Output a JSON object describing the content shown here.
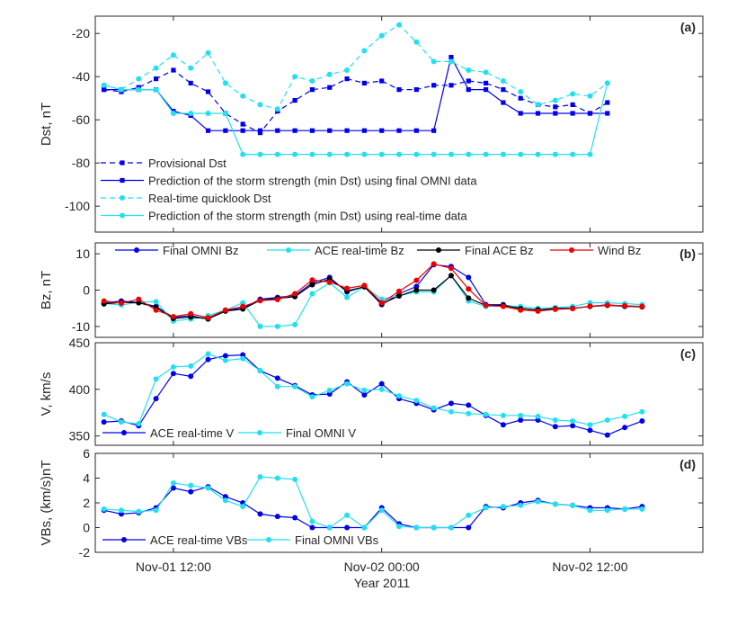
{
  "xaxis": {
    "label": "Year 2011",
    "range": [
      -0.5,
      34.5
    ],
    "ticks": [
      {
        "x": 4,
        "label": "Nov-01 12:00"
      },
      {
        "x": 16,
        "label": "Nov-02 00:00"
      },
      {
        "x": 28,
        "label": "Nov-02 12:00"
      }
    ]
  },
  "colors": {
    "blue": "#0000ee",
    "cyan": "#22e0f0",
    "black": "#000000",
    "red": "#ee0000"
  },
  "chart_data": [
    {
      "type": "line",
      "panel": "a",
      "tag": "(a)",
      "ylabel": "Dst, nT",
      "ylim": [
        -112,
        -12
      ],
      "yticks": [
        -20,
        -40,
        -60,
        -80,
        -100
      ],
      "legend_position": "bottom-left",
      "series": [
        {
          "name": "Provisional Dst",
          "color": "blue",
          "dash": true,
          "marker": "square",
          "values": [
            -46,
            -47,
            -45,
            -41,
            -37,
            -43,
            -47,
            -57,
            -62,
            -66,
            -56,
            -51,
            -46,
            -45,
            -41,
            -43,
            -42,
            -46,
            -46,
            -44,
            -44,
            -42,
            -43,
            -46,
            -50,
            -53,
            -54,
            -53,
            -57,
            -52
          ]
        },
        {
          "name": "Prediction of the storm strength (min Dst) using final OMNI data",
          "color": "blue",
          "dash": false,
          "marker": "square",
          "values": [
            -46,
            -46,
            -46,
            -46,
            -56,
            -58,
            -65,
            -65,
            -65,
            -65,
            -65,
            -65,
            -65,
            -65,
            -65,
            -65,
            -65,
            -65,
            -65,
            -65,
            -31,
            -46,
            -46,
            -52,
            -57,
            -57,
            -57,
            -57,
            -57,
            -57
          ]
        },
        {
          "name": "Real-time quicklook Dst",
          "color": "cyan",
          "dash": true,
          "marker": "circle",
          "values": [
            -44,
            -46,
            -41,
            -36,
            -30,
            -36,
            -29,
            -43,
            -49,
            -53,
            -55,
            -40,
            -42,
            -39,
            -37,
            -28,
            -21,
            -16,
            -24,
            -33,
            -33,
            -37,
            -38,
            -42,
            -47,
            -53,
            -51,
            -48,
            -49,
            -43
          ]
        },
        {
          "name": "Prediction of the storm strength (min Dst) using real-time data",
          "color": "cyan",
          "dash": false,
          "marker": "circle",
          "values": [
            -44,
            -46,
            -46,
            -46,
            -57,
            -57,
            -57,
            -57,
            -76,
            -76,
            -76,
            -76,
            -76,
            -76,
            -76,
            -76,
            -76,
            -76,
            -76,
            -76,
            -76,
            -76,
            -76,
            -76,
            -76,
            -76,
            -76,
            -76,
            -76,
            -43
          ]
        }
      ]
    },
    {
      "type": "line",
      "panel": "b",
      "tag": "(b)",
      "ylabel": "Bz, nT",
      "ylim": [
        -13,
        13
      ],
      "yticks": [
        10,
        0,
        -10
      ],
      "legend_position": "top",
      "series": [
        {
          "name": "Final OMNI Bz",
          "color": "blue",
          "marker": "circle",
          "values": [
            -3.5,
            -3,
            -3.4,
            -4.5,
            -7.5,
            -7,
            -8,
            -5.5,
            -5,
            -2.5,
            -2,
            -1.5,
            2,
            3.5,
            -0.5,
            1,
            -4,
            -1,
            1,
            7,
            6.5,
            3.5,
            -4,
            -4,
            -5,
            -5.5,
            -5,
            -5,
            -4.5,
            -4,
            -4.5,
            -4.5
          ]
        },
        {
          "name": "ACE real-time Bz",
          "color": "cyan",
          "marker": "circle",
          "values": [
            -3.7,
            -4.1,
            -3.3,
            -3.2,
            -8.5,
            -8,
            -7,
            -5.5,
            -3.5,
            -10,
            -10,
            -9.5,
            -1,
            2,
            -2,
            1,
            -2.5,
            -1.5,
            -0.5,
            -0.5,
            4,
            -3,
            -4.5,
            -4.3,
            -4.5,
            -5,
            -4.8,
            -4.5,
            -3.5,
            -3.5,
            -3.7,
            -4
          ]
        },
        {
          "name": "Final ACE Bz",
          "color": "black",
          "marker": "circle",
          "values": [
            -3.8,
            -3.4,
            -3.5,
            -4.7,
            -7.8,
            -7.4,
            -7.9,
            -5.8,
            -5.2,
            -2.8,
            -2.3,
            -1.8,
            1.5,
            3,
            -0.2,
            0.9,
            -3.8,
            -1.6,
            0,
            0,
            4,
            -2.2,
            -4.2,
            -4.2,
            -5.1,
            -5.4,
            -5.1,
            -5,
            -4.5,
            -4.2,
            -4.4,
            -4.6
          ]
        },
        {
          "name": "Wind Bz",
          "color": "red",
          "marker": "circle",
          "values": [
            -3,
            -3.6,
            -2.5,
            -5.5,
            -7.3,
            -6.5,
            -7.6,
            -5.5,
            -4.5,
            -2.9,
            -2.6,
            -1,
            2.8,
            2.2,
            0.5,
            1.3,
            -3.5,
            -0.3,
            2.7,
            7.2,
            6,
            0.3,
            -4.2,
            -4.5,
            -5.5,
            -5.8,
            -5.3,
            -5.1,
            -4.4,
            -4.1,
            -4.3,
            -4.5
          ]
        }
      ]
    },
    {
      "type": "line",
      "panel": "c",
      "tag": "(c)",
      "ylabel": "V, km/s",
      "ylim": [
        340,
        450
      ],
      "yticks": [
        450,
        400,
        350
      ],
      "legend_position": "bottom-left",
      "series": [
        {
          "name": "ACE real-time V",
          "color": "blue",
          "marker": "circle",
          "values": [
            365,
            366,
            361,
            390,
            417,
            414,
            432,
            436,
            437,
            420,
            412,
            404,
            394,
            395,
            408,
            394,
            406,
            390,
            385,
            378,
            385,
            383,
            372,
            362,
            367,
            367,
            360,
            361,
            356,
            351,
            359,
            366
          ]
        },
        {
          "name": "Final OMNI V",
          "color": "cyan",
          "marker": "circle",
          "values": [
            373,
            365,
            363,
            411,
            424,
            425,
            438,
            431,
            433,
            420,
            403,
            403,
            392,
            399,
            406,
            399,
            400,
            393,
            388,
            380,
            376,
            374,
            373,
            372,
            372,
            371,
            367,
            366,
            362,
            367,
            371,
            376
          ]
        }
      ]
    },
    {
      "type": "line",
      "panel": "d",
      "tag": "(d)",
      "ylabel": "VBs, (km/s)nT",
      "ylim": [
        -2,
        6
      ],
      "yticks": [
        6,
        4,
        2,
        0,
        -2
      ],
      "legend_position": "bottom-left",
      "series": [
        {
          "name": "ACE real-time VBs",
          "color": "blue",
          "marker": "circle",
          "values": [
            1.4,
            1.1,
            1.2,
            1.6,
            3.2,
            2.9,
            3.3,
            2.5,
            2,
            1.1,
            0.9,
            0.8,
            0,
            0,
            0,
            0,
            1.6,
            0.3,
            0,
            0,
            0,
            0,
            1.7,
            1.6,
            2,
            2.2,
            1.9,
            1.8,
            1.6,
            1.6,
            1.5,
            1.7
          ]
        },
        {
          "name": "Final OMNI VBs",
          "color": "cyan",
          "marker": "circle",
          "values": [
            1.5,
            1.4,
            1.3,
            1.4,
            3.6,
            3.4,
            3.2,
            2.2,
            1.7,
            4.1,
            4,
            3.9,
            0.5,
            0,
            1,
            0,
            1.4,
            0.1,
            0,
            0,
            0,
            1,
            1.6,
            1.7,
            1.8,
            2.1,
            1.9,
            1.8,
            1.4,
            1.4,
            1.5,
            1.5
          ]
        }
      ]
    }
  ]
}
